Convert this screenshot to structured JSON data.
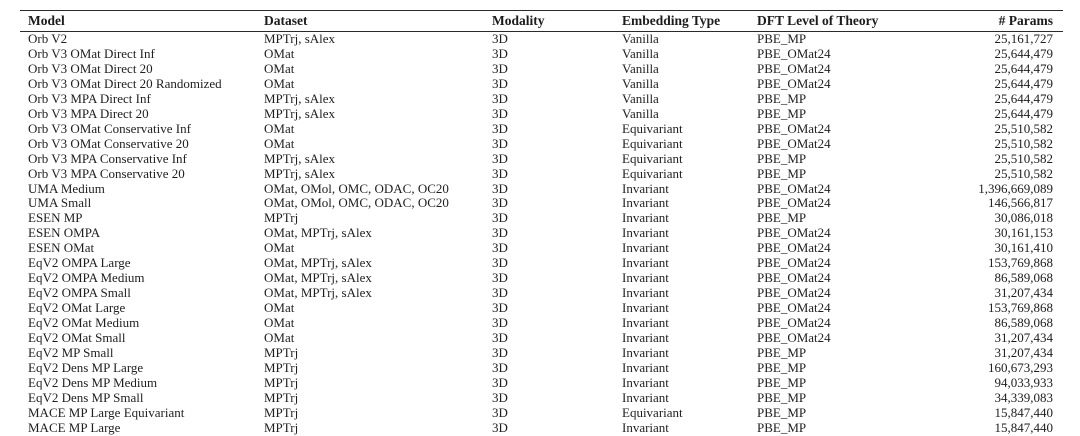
{
  "table": {
    "columns": [
      {
        "label": "Model",
        "align": "left"
      },
      {
        "label": "Dataset",
        "align": "left"
      },
      {
        "label": "Modality",
        "align": "left"
      },
      {
        "label": "Embedding Type",
        "align": "left"
      },
      {
        "label": "DFT Level of Theory",
        "align": "left"
      },
      {
        "label": "# Params",
        "align": "right"
      }
    ],
    "rows": [
      [
        "Orb V2",
        "MPTrj, sAlex",
        "3D",
        "Vanilla",
        "PBE_MP",
        "25,161,727"
      ],
      [
        "Orb V3 OMat Direct Inf",
        "OMat",
        "3D",
        "Vanilla",
        "PBE_OMat24",
        "25,644,479"
      ],
      [
        "Orb V3 OMat Direct 20",
        "OMat",
        "3D",
        "Vanilla",
        "PBE_OMat24",
        "25,644,479"
      ],
      [
        "Orb V3 OMat Direct 20 Randomized",
        "OMat",
        "3D",
        "Vanilla",
        "PBE_OMat24",
        "25,644,479"
      ],
      [
        "Orb V3 MPA Direct Inf",
        "MPTrj, sAlex",
        "3D",
        "Vanilla",
        "PBE_MP",
        "25,644,479"
      ],
      [
        "Orb V3 MPA Direct 20",
        "MPTrj, sAlex",
        "3D",
        "Vanilla",
        "PBE_MP",
        "25,644,479"
      ],
      [
        "Orb V3 OMat Conservative Inf",
        "OMat",
        "3D",
        "Equivariant",
        "PBE_OMat24",
        "25,510,582"
      ],
      [
        "Orb V3 OMat Conservative 20",
        "OMat",
        "3D",
        "Equivariant",
        "PBE_OMat24",
        "25,510,582"
      ],
      [
        "Orb V3 MPA Conservative Inf",
        "MPTrj, sAlex",
        "3D",
        "Equivariant",
        "PBE_MP",
        "25,510,582"
      ],
      [
        "Orb V3 MPA Conservative 20",
        "MPTrj, sAlex",
        "3D",
        "Equivariant",
        "PBE_MP",
        "25,510,582"
      ],
      [
        "UMA Medium",
        "OMat, OMol, OMC, ODAC, OC20",
        "3D",
        "Invariant",
        "PBE_OMat24",
        "1,396,669,089"
      ],
      [
        "UMA Small",
        "OMat, OMol, OMC, ODAC, OC20",
        "3D",
        "Invariant",
        "PBE_OMat24",
        "146,566,817"
      ],
      [
        "ESEN MP",
        "MPTrj",
        "3D",
        "Invariant",
        "PBE_MP",
        "30,086,018"
      ],
      [
        "ESEN OMPA",
        "OMat, MPTrj, sAlex",
        "3D",
        "Invariant",
        "PBE_OMat24",
        "30,161,153"
      ],
      [
        "ESEN OMat",
        "OMat",
        "3D",
        "Invariant",
        "PBE_OMat24",
        "30,161,410"
      ],
      [
        "EqV2 OMPA Large",
        "OMat, MPTrj, sAlex",
        "3D",
        "Invariant",
        "PBE_OMat24",
        "153,769,868"
      ],
      [
        "EqV2 OMPA Medium",
        "OMat, MPTrj, sAlex",
        "3D",
        "Invariant",
        "PBE_OMat24",
        "86,589,068"
      ],
      [
        "EqV2 OMPA Small",
        "OMat, MPTrj, sAlex",
        "3D",
        "Invariant",
        "PBE_OMat24",
        "31,207,434"
      ],
      [
        "EqV2 OMat Large",
        "OMat",
        "3D",
        "Invariant",
        "PBE_OMat24",
        "153,769,868"
      ],
      [
        "EqV2 OMat Medium",
        "OMat",
        "3D",
        "Invariant",
        "PBE_OMat24",
        "86,589,068"
      ],
      [
        "EqV2 OMat Small",
        "OMat",
        "3D",
        "Invariant",
        "PBE_OMat24",
        "31,207,434"
      ],
      [
        "EqV2 MP Small",
        "MPTrj",
        "3D",
        "Invariant",
        "PBE_MP",
        "31,207,434"
      ],
      [
        "EqV2 Dens MP Large",
        "MPTrj",
        "3D",
        "Invariant",
        "PBE_MP",
        "160,673,293"
      ],
      [
        "EqV2 Dens MP Medium",
        "MPTrj",
        "3D",
        "Invariant",
        "PBE_MP",
        "94,033,933"
      ],
      [
        "EqV2 Dens MP Small",
        "MPTrj",
        "3D",
        "Invariant",
        "PBE_MP",
        "34,339,083"
      ],
      [
        "MACE MP Large Equivariant",
        "MPTrj",
        "3D",
        "Equivariant",
        "PBE_MP",
        "15,847,440"
      ],
      [
        "MACE MP Large",
        "MPTrj",
        "3D",
        "Invariant",
        "PBE_MP",
        "15,847,440"
      ]
    ]
  }
}
